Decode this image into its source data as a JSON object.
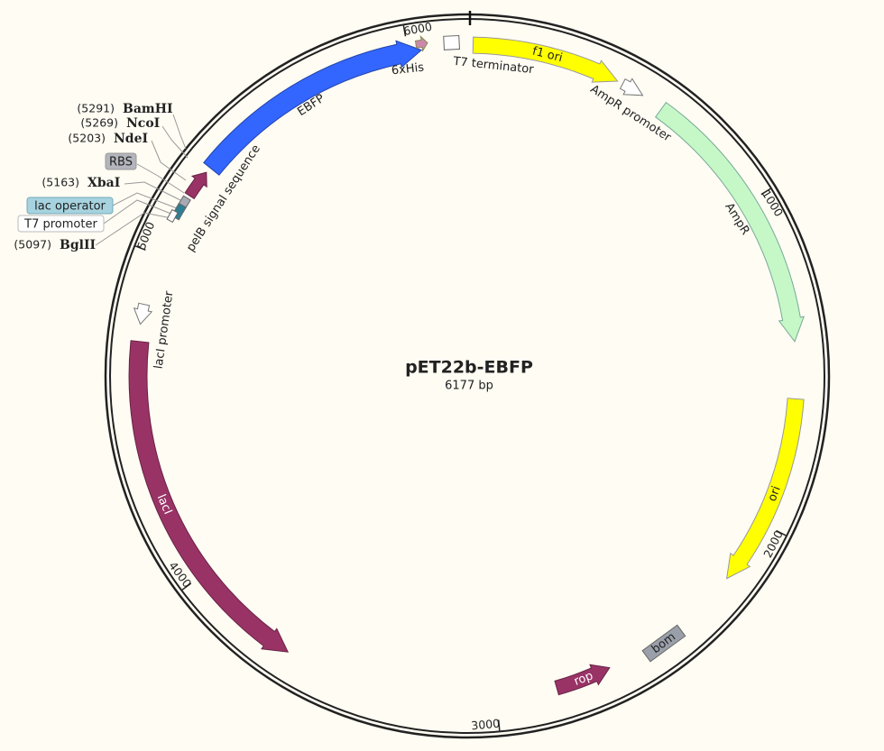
{
  "map": {
    "title": "pET22b-EBFP",
    "size": "6177 bp",
    "ticks": [
      "1000",
      "2000",
      "3000",
      "4000",
      "5000",
      "6000"
    ],
    "features": [
      {
        "label": "f1 ori"
      },
      {
        "label": "AmpR promoter"
      },
      {
        "label": "AmpR"
      },
      {
        "label": "ori"
      },
      {
        "label": "bom"
      },
      {
        "label": "rop"
      },
      {
        "label": "lacI"
      },
      {
        "label": "lacI promoter"
      },
      {
        "label": "EBFP"
      },
      {
        "label": "pelB signal sequence"
      },
      {
        "label": "6xHis"
      },
      {
        "label": "T7 terminator"
      },
      {
        "label": "RBS"
      },
      {
        "label": "lac operator"
      },
      {
        "label": "T7 promoter"
      }
    ],
    "sites": [
      {
        "position": "(5291)",
        "name": "BamHI"
      },
      {
        "position": "(5269)",
        "name": "NcoI"
      },
      {
        "position": "(5203)",
        "name": "NdeI"
      },
      {
        "position": "(5163)",
        "name": "XbaI"
      },
      {
        "position": "(5097)",
        "name": "BglII"
      }
    ]
  }
}
